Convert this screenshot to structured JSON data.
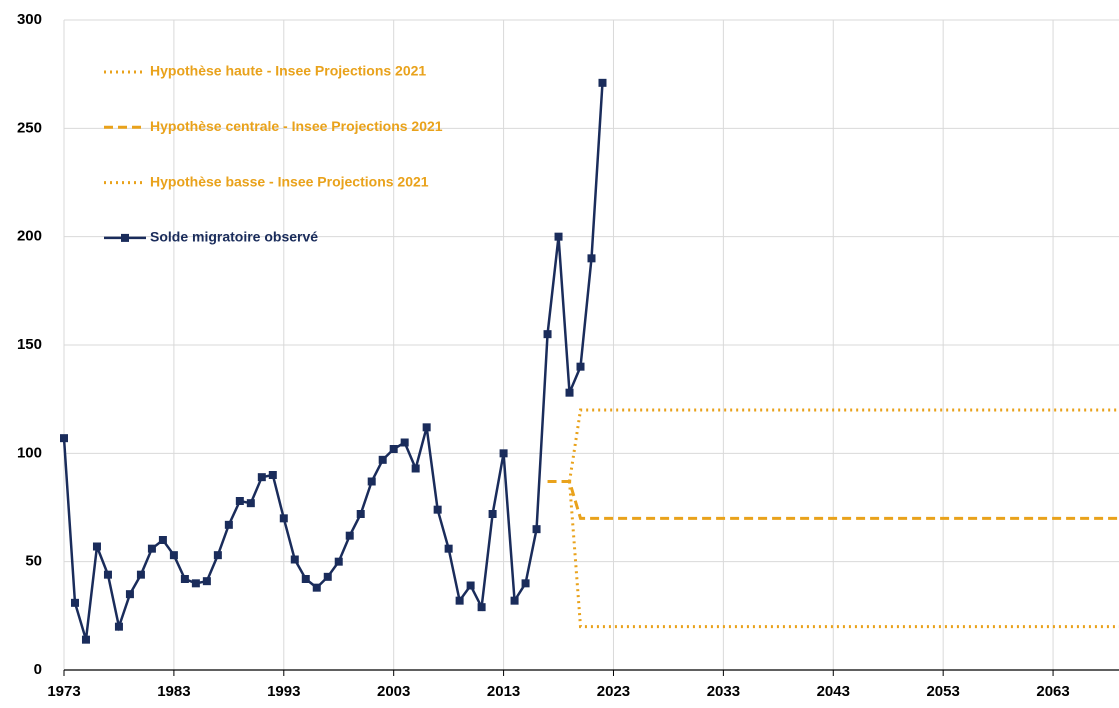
{
  "chart_data": {
    "type": "line",
    "xlim": [
      1973,
      2069
    ],
    "ylim": [
      0,
      300
    ],
    "xticks": [
      1973,
      1983,
      1993,
      2003,
      2013,
      2023,
      2033,
      2043,
      2053,
      2063
    ],
    "yticks": [
      0,
      50,
      100,
      150,
      200,
      250,
      300
    ],
    "grid": true,
    "legend": "upper left",
    "series": [
      {
        "name": "Hypothèse haute - Insee Projections 2021",
        "color": "#e9a21b",
        "style": "dotted",
        "x": [
          2019,
          2020,
          2069
        ],
        "values": [
          87,
          120,
          120
        ]
      },
      {
        "name": "Hypothèse centrale - Insee Projections 2021",
        "color": "#e9a21b",
        "style": "dashed",
        "x": [
          2017,
          2019,
          2020,
          2069
        ],
        "values": [
          87,
          87,
          70,
          70
        ]
      },
      {
        "name": "Hypothèse basse - Insee Projections 2021",
        "color": "#e9a21b",
        "style": "dotted",
        "x": [
          2019,
          2020,
          2069
        ],
        "values": [
          87,
          20,
          20
        ]
      },
      {
        "name": "Solde migratoire observé",
        "color": "#1a2c5b",
        "style": "solid",
        "marker": "square",
        "x": [
          1973,
          1974,
          1975,
          1976,
          1977,
          1978,
          1979,
          1980,
          1981,
          1982,
          1983,
          1984,
          1985,
          1986,
          1987,
          1988,
          1989,
          1990,
          1991,
          1992,
          1993,
          1994,
          1995,
          1996,
          1997,
          1998,
          1999,
          2000,
          2001,
          2002,
          2003,
          2004,
          2005,
          2006,
          2007,
          2008,
          2009,
          2010,
          2011,
          2012,
          2013,
          2014,
          2015,
          2016,
          2017,
          2018,
          2019,
          2020,
          2021,
          2022
        ],
        "values": [
          107,
          31,
          14,
          57,
          44,
          20,
          35,
          44,
          56,
          60,
          53,
          42,
          40,
          41,
          53,
          67,
          78,
          77,
          89,
          90,
          70,
          51,
          42,
          38,
          43,
          50,
          62,
          72,
          87,
          97,
          102,
          105,
          93,
          112,
          74,
          56,
          32,
          39,
          29,
          72,
          100,
          32,
          40,
          65,
          155,
          200,
          128,
          140,
          190,
          271
        ]
      }
    ]
  }
}
